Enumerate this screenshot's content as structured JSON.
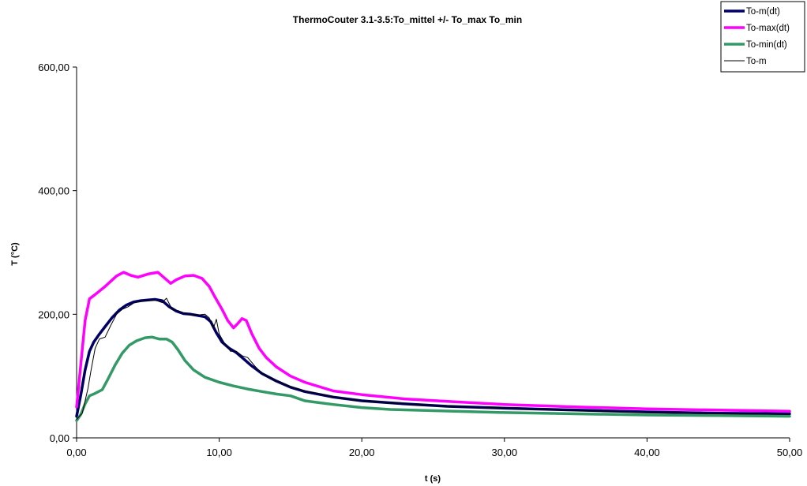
{
  "chart_data": {
    "type": "line",
    "title": "ThermoCouter 3.1-3.5:To_mittel +/- To_max To_min",
    "xlabel": "t (s)",
    "ylabel": "T (°C)",
    "xlim": [
      0,
      50
    ],
    "ylim": [
      0,
      600
    ],
    "x_ticks": [
      0,
      10,
      20,
      30,
      40,
      50
    ],
    "y_ticks": [
      0,
      200,
      400,
      600
    ],
    "x_tick_labels": [
      "0,00",
      "10,00",
      "20,00",
      "30,00",
      "40,00",
      "50,00"
    ],
    "y_tick_labels": [
      "0,00",
      "200,00",
      "400,00",
      "600,00"
    ],
    "grid": false,
    "legend_position": "top-right",
    "series": [
      {
        "name": "To-m(dt)",
        "color": "#000066",
        "style": "thick",
        "points": [
          [
            0,
            35
          ],
          [
            0.3,
            70
          ],
          [
            0.6,
            110
          ],
          [
            0.9,
            140
          ],
          [
            1.2,
            155
          ],
          [
            1.6,
            168
          ],
          [
            2,
            180
          ],
          [
            2.5,
            195
          ],
          [
            3,
            207
          ],
          [
            3.5,
            215
          ],
          [
            4,
            220
          ],
          [
            4.5,
            222
          ],
          [
            5,
            223
          ],
          [
            5.5,
            224
          ],
          [
            6,
            222
          ],
          [
            6.5,
            212
          ],
          [
            7,
            205
          ],
          [
            7.5,
            201
          ],
          [
            8,
            200
          ],
          [
            8.5,
            198
          ],
          [
            9,
            196
          ],
          [
            9.4,
            188
          ],
          [
            9.8,
            170
          ],
          [
            10.2,
            155
          ],
          [
            10.7,
            145
          ],
          [
            11.2,
            138
          ],
          [
            11.7,
            128
          ],
          [
            12.2,
            118
          ],
          [
            13,
            104
          ],
          [
            14,
            92
          ],
          [
            15,
            82
          ],
          [
            16,
            75
          ],
          [
            18,
            66
          ],
          [
            20,
            60
          ],
          [
            23,
            55
          ],
          [
            26,
            51
          ],
          [
            30,
            48
          ],
          [
            35,
            45
          ],
          [
            40,
            42
          ],
          [
            45,
            40
          ],
          [
            50,
            39
          ]
        ]
      },
      {
        "name": "To-max(dt)",
        "color": "#ff00ff",
        "style": "thick",
        "points": [
          [
            0,
            50
          ],
          [
            0.3,
            120
          ],
          [
            0.6,
            190
          ],
          [
            0.9,
            225
          ],
          [
            1.3,
            232
          ],
          [
            2,
            245
          ],
          [
            2.8,
            262
          ],
          [
            3.3,
            268
          ],
          [
            3.8,
            263
          ],
          [
            4.3,
            260
          ],
          [
            5,
            265
          ],
          [
            5.7,
            268
          ],
          [
            6.2,
            258
          ],
          [
            6.6,
            250
          ],
          [
            7,
            256
          ],
          [
            7.6,
            262
          ],
          [
            8.2,
            263
          ],
          [
            8.8,
            258
          ],
          [
            9.3,
            245
          ],
          [
            9.7,
            228
          ],
          [
            10.2,
            208
          ],
          [
            10.6,
            190
          ],
          [
            11,
            178
          ],
          [
            11.3,
            185
          ],
          [
            11.6,
            193
          ],
          [
            11.9,
            190
          ],
          [
            12.3,
            168
          ],
          [
            12.8,
            145
          ],
          [
            13.3,
            130
          ],
          [
            14,
            115
          ],
          [
            15,
            100
          ],
          [
            16,
            90
          ],
          [
            17,
            83
          ],
          [
            18,
            76
          ],
          [
            20,
            70
          ],
          [
            23,
            63
          ],
          [
            26,
            59
          ],
          [
            30,
            54
          ],
          [
            35,
            50
          ],
          [
            40,
            47
          ],
          [
            45,
            45
          ],
          [
            50,
            43
          ]
        ]
      },
      {
        "name": "To-min(dt)",
        "color": "#339966",
        "style": "thick",
        "points": [
          [
            0,
            28
          ],
          [
            0.3,
            38
          ],
          [
            0.6,
            55
          ],
          [
            0.9,
            68
          ],
          [
            1.3,
            72
          ],
          [
            1.8,
            78
          ],
          [
            2.2,
            95
          ],
          [
            2.7,
            118
          ],
          [
            3.2,
            137
          ],
          [
            3.7,
            150
          ],
          [
            4.2,
            157
          ],
          [
            4.8,
            162
          ],
          [
            5.3,
            163
          ],
          [
            5.8,
            160
          ],
          [
            6.3,
            160
          ],
          [
            6.7,
            155
          ],
          [
            7.1,
            143
          ],
          [
            7.6,
            125
          ],
          [
            8.2,
            110
          ],
          [
            9,
            98
          ],
          [
            10,
            90
          ],
          [
            11,
            84
          ],
          [
            12,
            79
          ],
          [
            13,
            75
          ],
          [
            14,
            71
          ],
          [
            15,
            68
          ],
          [
            16,
            60
          ],
          [
            17,
            57
          ],
          [
            18,
            54
          ],
          [
            20,
            49
          ],
          [
            22,
            46
          ],
          [
            25,
            44
          ],
          [
            30,
            41
          ],
          [
            35,
            39
          ],
          [
            40,
            37
          ],
          [
            45,
            36
          ],
          [
            50,
            35
          ]
        ]
      },
      {
        "name": "To-m",
        "color": "#000000",
        "style": "thin",
        "points": [
          [
            0,
            30
          ],
          [
            0.4,
            40
          ],
          [
            0.8,
            80
          ],
          [
            1,
            108
          ],
          [
            1.3,
            145
          ],
          [
            1.6,
            160
          ],
          [
            2,
            163
          ],
          [
            2.4,
            182
          ],
          [
            2.8,
            200
          ],
          [
            3.2,
            208
          ],
          [
            3.6,
            212
          ],
          [
            4,
            218
          ],
          [
            4.5,
            221
          ],
          [
            5,
            222
          ],
          [
            5.5,
            223
          ],
          [
            6,
            219
          ],
          [
            6.3,
            226
          ],
          [
            6.7,
            208
          ],
          [
            7.1,
            206
          ],
          [
            7.5,
            202
          ],
          [
            8,
            199
          ],
          [
            8.6,
            199
          ],
          [
            9,
            200
          ],
          [
            9.3,
            194
          ],
          [
            9.6,
            178
          ],
          [
            9.8,
            192
          ],
          [
            10,
            168
          ],
          [
            10.4,
            152
          ],
          [
            10.8,
            140
          ],
          [
            11.2,
            140
          ],
          [
            11.6,
            133
          ],
          [
            12,
            130
          ],
          [
            12.5,
            116
          ],
          [
            13,
            104
          ],
          [
            14,
            92
          ],
          [
            15,
            83
          ],
          [
            16,
            76
          ],
          [
            18,
            66
          ],
          [
            20,
            60
          ],
          [
            23,
            55
          ],
          [
            26,
            51
          ],
          [
            30,
            48
          ],
          [
            35,
            44
          ],
          [
            40,
            41
          ],
          [
            45,
            39
          ],
          [
            50,
            38
          ]
        ]
      }
    ]
  }
}
